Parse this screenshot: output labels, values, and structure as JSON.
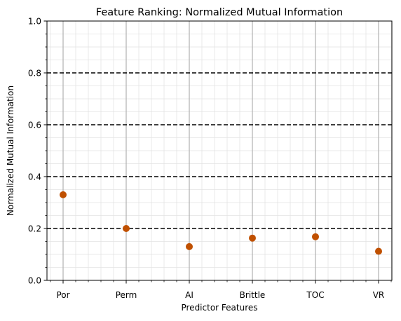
{
  "chart_data": {
    "type": "scatter",
    "title": "Feature Ranking: Normalized Mutual Information",
    "xlabel": "Predictor Features",
    "ylabel": "Normalized Mutual Information",
    "categories": [
      "Por",
      "Perm",
      "AI",
      "Brittle",
      "TOC",
      "VR"
    ],
    "values": [
      0.33,
      0.2,
      0.13,
      0.163,
      0.168,
      0.112
    ],
    "ylim": [
      0.0,
      1.0
    ],
    "yticks": [
      "0.0",
      "0.2",
      "0.4",
      "0.6",
      "0.8",
      "1.0"
    ],
    "reference_lines": [
      0.2,
      0.4,
      0.6,
      0.8
    ],
    "grid": true,
    "marker_color": "#c05000",
    "reference_line_color": "#000000"
  }
}
